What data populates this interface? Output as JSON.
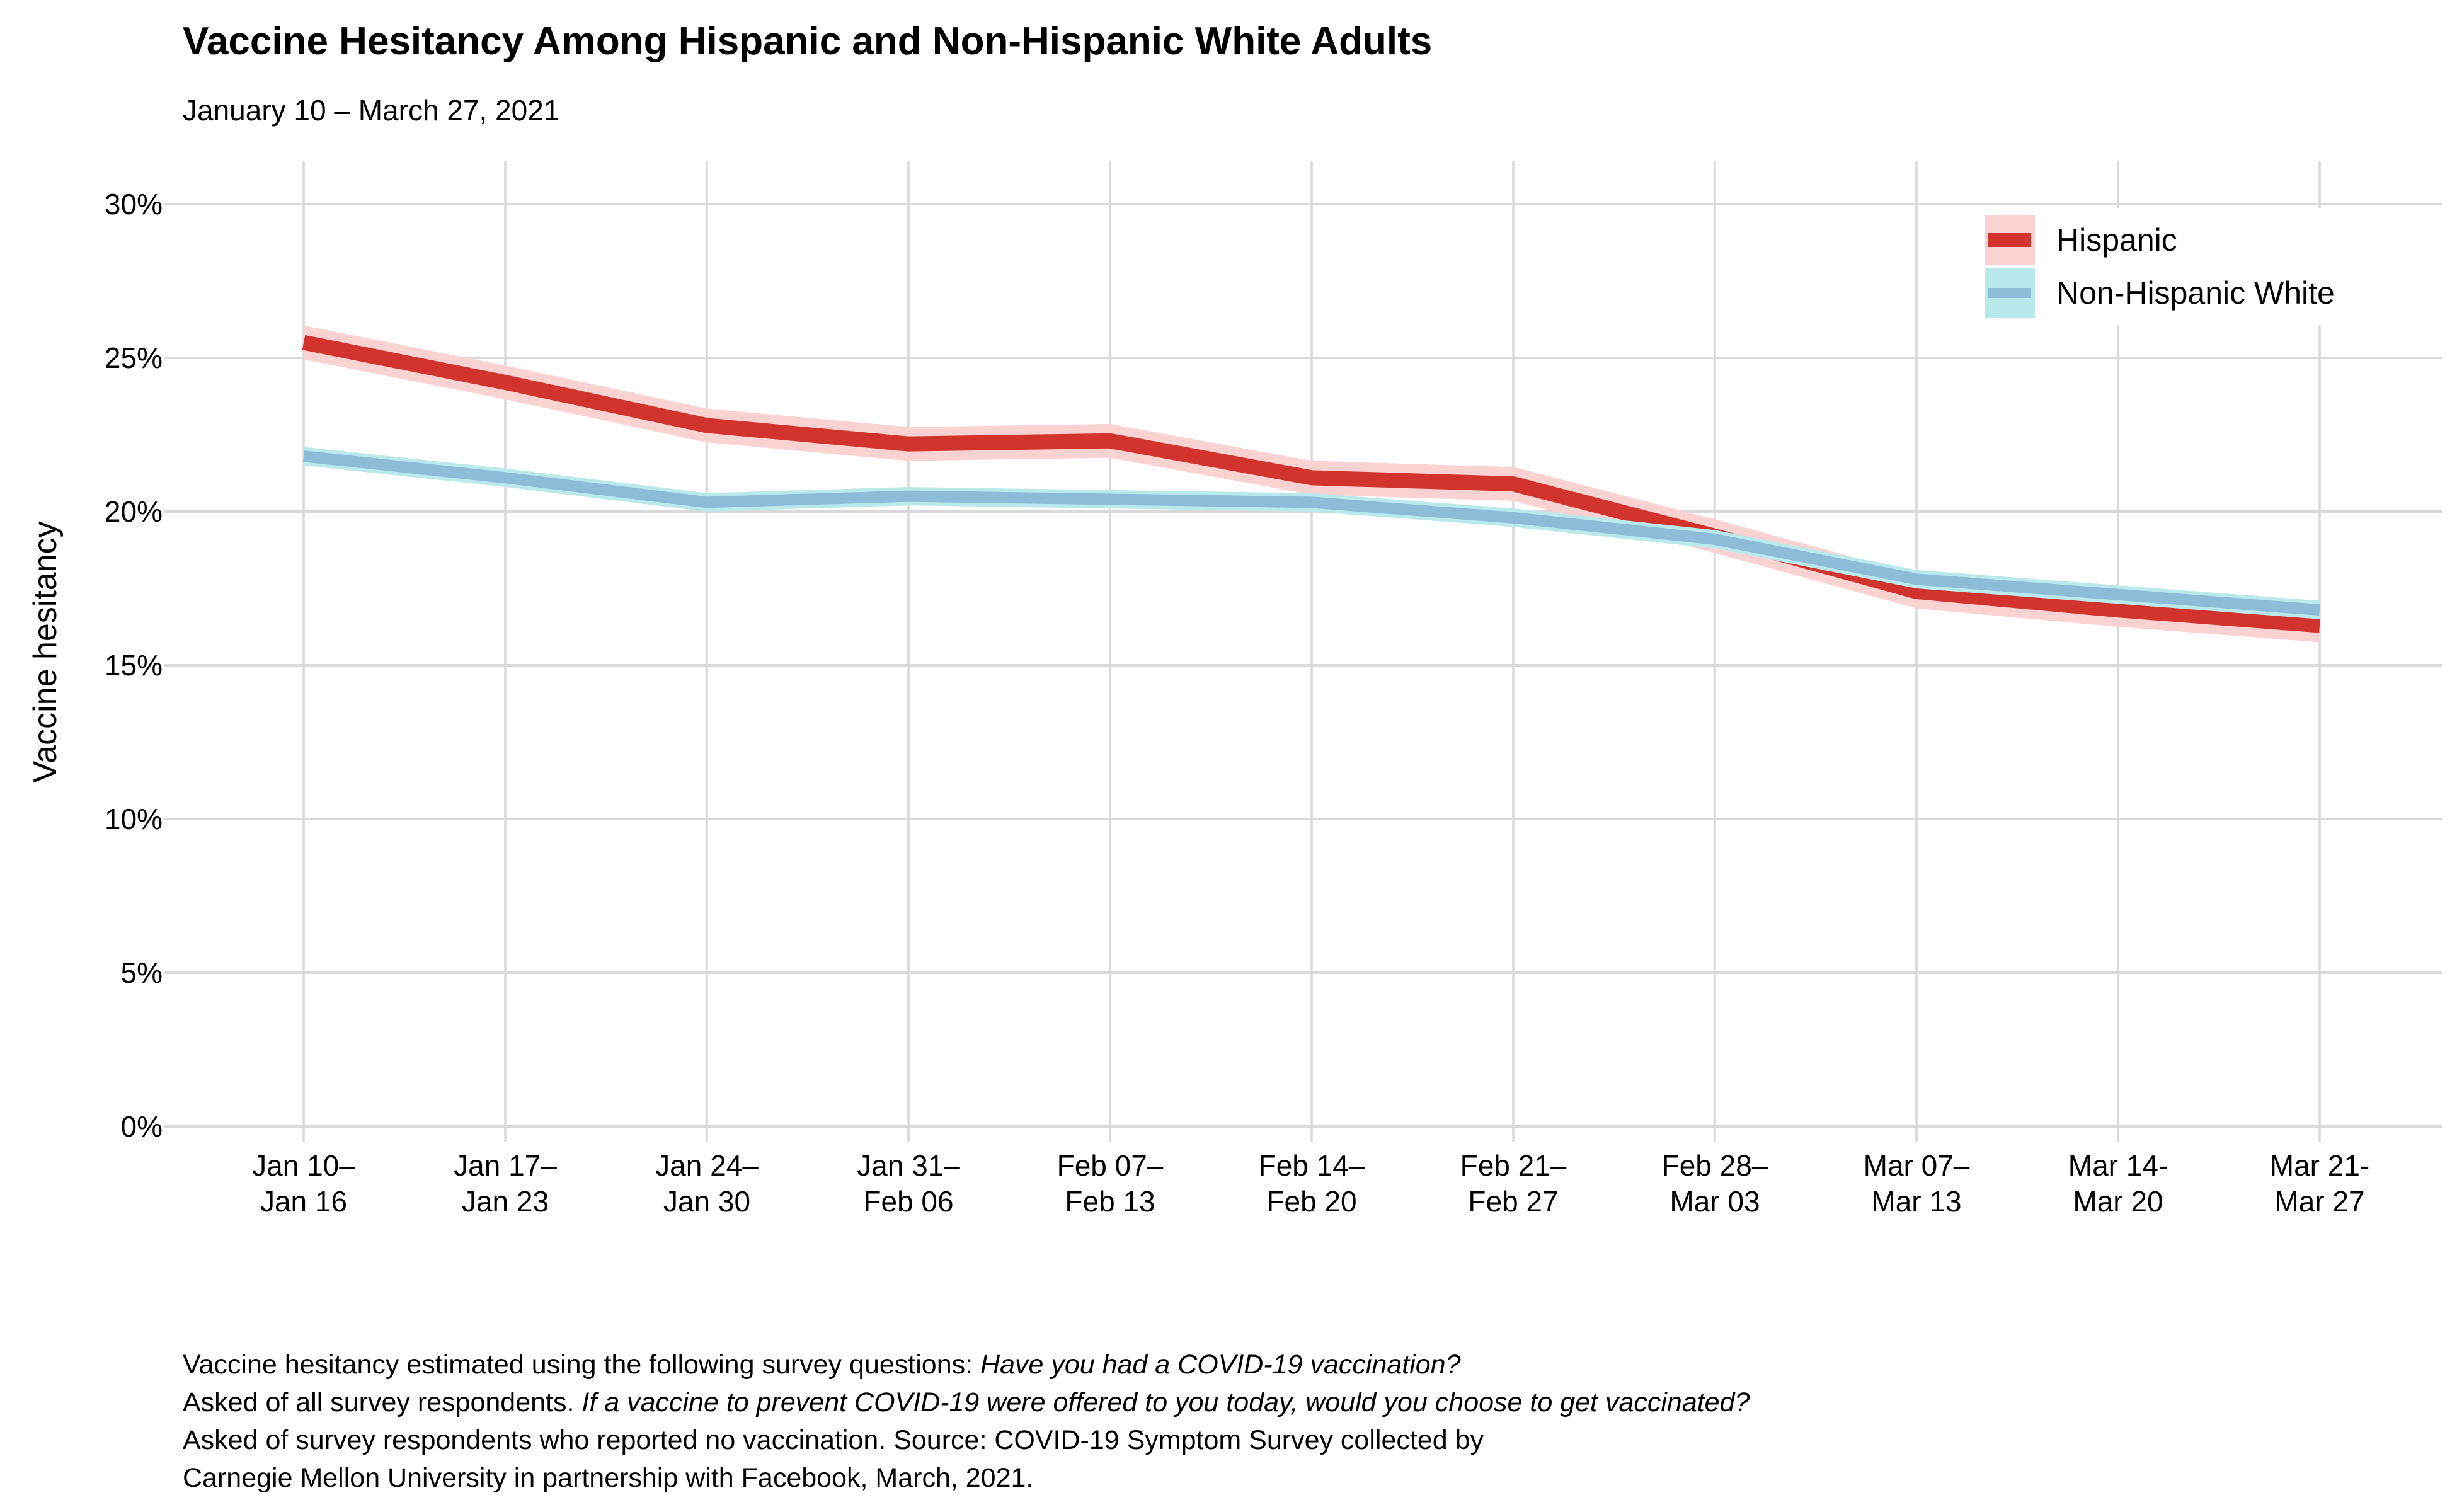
{
  "header": {
    "title": "Vaccine Hesitancy Among Hispanic and Non-Hispanic White Adults",
    "subtitle": "January 10 – March 27, 2021"
  },
  "chart_data": {
    "type": "line",
    "title": "Vaccine Hesitancy Among Hispanic and Non-Hispanic White Adults",
    "subtitle": "January 10 – March 27, 2021",
    "ylabel": "Vaccine hesitancy",
    "ylim": [
      0,
      30
    ],
    "yticks": [
      0,
      5,
      10,
      15,
      20,
      25,
      30
    ],
    "ytick_labels": [
      "0%",
      "5%",
      "10%",
      "15%",
      "20%",
      "25%",
      "30%"
    ],
    "grid": true,
    "legend_position": "top-right",
    "categories": [
      [
        "Jan 10–",
        "Jan 16"
      ],
      [
        "Jan 17–",
        "Jan 23"
      ],
      [
        "Jan 24–",
        "Jan 30"
      ],
      [
        "Jan 31–",
        "Feb 06"
      ],
      [
        "Feb 07–",
        "Feb 13"
      ],
      [
        "Feb 14–",
        "Feb 20"
      ],
      [
        "Feb 21–",
        "Feb 27"
      ],
      [
        "Feb 28–",
        "Mar 03"
      ],
      [
        "Mar 07–",
        "Mar 13"
      ],
      [
        "Mar 14-",
        "Mar 20"
      ],
      [
        "Mar 21-",
        "Mar 27"
      ]
    ],
    "series": [
      {
        "name": "Hispanic",
        "values": [
          25.5,
          24.2,
          22.8,
          22.2,
          22.3,
          21.1,
          20.9,
          19.2,
          17.4,
          16.8,
          16.3
        ],
        "ribbon_halfwidth": 0.55,
        "line_color": "#d2332d",
        "ribbon_color": "#f9d2d1",
        "line_width": 24
      },
      {
        "name": "Non-Hispanic White",
        "values": [
          21.8,
          21.1,
          20.3,
          20.5,
          20.4,
          20.3,
          19.8,
          19.1,
          17.8,
          17.3,
          16.8
        ],
        "ribbon_halfwidth": 0.3,
        "line_color": "#8cbcd8",
        "ribbon_color": "#bae9ec",
        "line_width": 18
      }
    ],
    "colors": {
      "gridline": "#d9d9d9",
      "background": "#ffffff",
      "text": "#000000"
    }
  },
  "footer": {
    "lines": [
      [
        {
          "t": "Vaccine hesitancy estimated using the following survey questions: ",
          "i": false
        },
        {
          "t": "Have you had a COVID-19 vaccination?",
          "i": true
        }
      ],
      [
        {
          "t": "Asked of all survey respondents. ",
          "i": false
        },
        {
          "t": "If a vaccine to prevent COVID-19 were offered to you today, would you choose to get vaccinated?",
          "i": true
        }
      ],
      [
        {
          "t": "Asked of survey respondents who reported no vaccination. Source: COVID-19 Symptom Survey collected by",
          "i": false
        }
      ],
      [
        {
          "t": "Carnegie Mellon University in partnership with Facebook, March, 2021.",
          "i": false
        }
      ]
    ]
  }
}
